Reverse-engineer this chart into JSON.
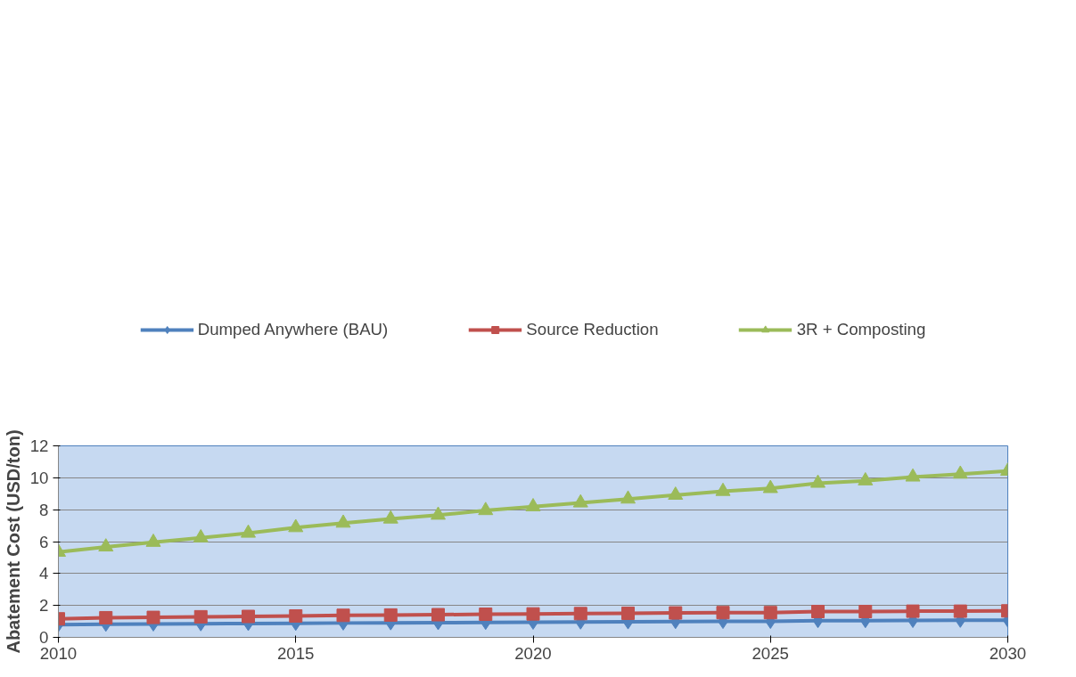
{
  "chart_data": {
    "type": "line",
    "ylabel": "Abatement Cost (USD/ton)",
    "x": [
      2010,
      2011,
      2012,
      2013,
      2014,
      2015,
      2016,
      2017,
      2018,
      2019,
      2020,
      2021,
      2022,
      2023,
      2024,
      2025,
      2026,
      2027,
      2028,
      2029,
      2030
    ],
    "series": [
      {
        "name": "Dumped Anywhere (BAU)",
        "color": "#4f81bd",
        "marker": "diamond",
        "values": [
          0.8,
          0.82,
          0.84,
          0.85,
          0.87,
          0.88,
          0.9,
          0.91,
          0.92,
          0.94,
          0.95,
          0.96,
          0.97,
          0.99,
          1.0,
          1.0,
          1.05,
          1.05,
          1.06,
          1.07,
          1.08
        ]
      },
      {
        "name": "Source Reduction",
        "color": "#c0504d",
        "marker": "square",
        "values": [
          1.16,
          1.23,
          1.25,
          1.29,
          1.31,
          1.34,
          1.38,
          1.4,
          1.42,
          1.45,
          1.47,
          1.49,
          1.51,
          1.53,
          1.55,
          1.55,
          1.62,
          1.62,
          1.64,
          1.64,
          1.66
        ]
      },
      {
        "name": "3R + Composting",
        "color": "#9bbb59",
        "marker": "triangle",
        "values": [
          5.34,
          5.67,
          5.96,
          6.24,
          6.53,
          6.88,
          7.16,
          7.42,
          7.66,
          7.95,
          8.19,
          8.43,
          8.67,
          8.91,
          9.15,
          9.33,
          9.66,
          9.81,
          10.05,
          10.23,
          10.42
        ]
      }
    ],
    "xlim": [
      2010,
      2030
    ],
    "xticks": [
      2010,
      2015,
      2020,
      2025,
      2030
    ],
    "ylim": [
      0,
      12
    ],
    "yticks": [
      0,
      2,
      4,
      6,
      8,
      10,
      12
    ],
    "grid": "y",
    "legend": "top",
    "line_style": "solid"
  }
}
